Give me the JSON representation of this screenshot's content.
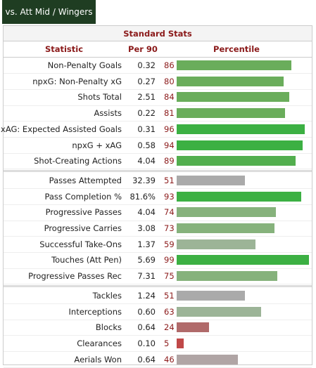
{
  "tab": {
    "label": "vs. Att Mid / Wingers"
  },
  "table": {
    "title": "Standard Stats",
    "columns": [
      "Statistic",
      "Per 90",
      "Percentile"
    ],
    "groups": [
      [
        {
          "stat": "Non-Penalty Goals",
          "per90": "0.32",
          "percentile": 86,
          "color": "#6aad5b"
        },
        {
          "stat": "npxG: Non-Penalty xG",
          "per90": "0.27",
          "percentile": 80,
          "color": "#6aad5b"
        },
        {
          "stat": "Shots Total",
          "per90": "2.51",
          "percentile": 84,
          "color": "#6aad5b"
        },
        {
          "stat": "Assists",
          "per90": "0.22",
          "percentile": 81,
          "color": "#6aad5b"
        },
        {
          "stat": "xAG: Expected Assisted Goals",
          "per90": "0.31",
          "percentile": 96,
          "color": "#3cb043"
        },
        {
          "stat": "npxG + xAG",
          "per90": "0.58",
          "percentile": 94,
          "color": "#3cb043"
        },
        {
          "stat": "Shot-Creating Actions",
          "per90": "4.04",
          "percentile": 89,
          "color": "#52ae4e"
        }
      ],
      [
        {
          "stat": "Passes Attempted",
          "per90": "32.39",
          "percentile": 51,
          "color": "#aaaaaa"
        },
        {
          "stat": "Pass Completion %",
          "per90": "81.6%",
          "percentile": 93,
          "color": "#3cb043"
        },
        {
          "stat": "Progressive Passes",
          "per90": "4.04",
          "percentile": 74,
          "color": "#86b27c"
        },
        {
          "stat": "Progressive Carries",
          "per90": "3.08",
          "percentile": 73,
          "color": "#86b27c"
        },
        {
          "stat": "Successful Take-Ons",
          "per90": "1.37",
          "percentile": 59,
          "color": "#9cb497"
        },
        {
          "stat": "Touches (Att Pen)",
          "per90": "5.69",
          "percentile": 99,
          "color": "#3cb043"
        },
        {
          "stat": "Progressive Passes Rec",
          "per90": "7.31",
          "percentile": 75,
          "color": "#86b27c"
        }
      ],
      [
        {
          "stat": "Tackles",
          "per90": "1.24",
          "percentile": 51,
          "color": "#aaaaaa"
        },
        {
          "stat": "Interceptions",
          "per90": "0.60",
          "percentile": 63,
          "color": "#9cb497"
        },
        {
          "stat": "Blocks",
          "per90": "0.64",
          "percentile": 24,
          "color": "#b06a6a"
        },
        {
          "stat": "Clearances",
          "per90": "0.10",
          "percentile": 5,
          "color": "#c04848"
        },
        {
          "stat": "Aerials Won",
          "per90": "0.64",
          "percentile": 46,
          "color": "#b0a5a5"
        }
      ]
    ]
  }
}
